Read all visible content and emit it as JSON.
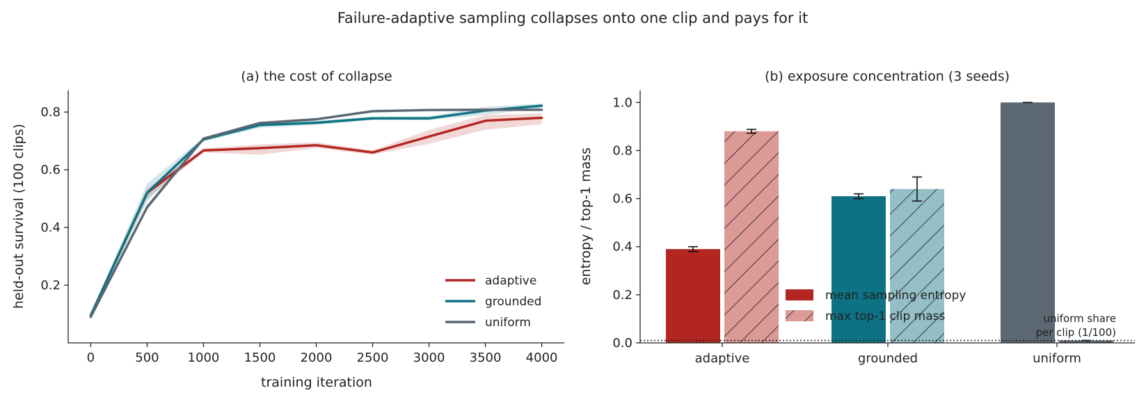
{
  "suptitle": "Failure-adaptive sampling collapses onto one clip and pays for it",
  "colors": {
    "adaptive": "#b22520",
    "adaptive_light": "#dc9a96",
    "grounded": "#0d7384",
    "grounded_light": "#94bfc7",
    "uniform": "#5b6772"
  },
  "chart_data": [
    {
      "type": "line",
      "title": "(a) the cost of collapse",
      "xlabel": "training iteration",
      "ylabel": "held-out survival (100 clips)",
      "x": [
        0,
        500,
        1000,
        1500,
        2000,
        2500,
        3000,
        3500,
        4000
      ],
      "xticks": [
        0,
        500,
        1000,
        1500,
        2000,
        2500,
        3000,
        3500,
        4000
      ],
      "yticks": [
        0.2,
        0.4,
        0.6,
        0.8
      ],
      "xlim": [
        -200,
        4200
      ],
      "ylim": [
        0.0,
        0.875
      ],
      "grid": false,
      "legend_position": "bottom-right",
      "series": [
        {
          "name": "adaptive",
          "values": [
            0.095,
            0.52,
            0.667,
            0.675,
            0.685,
            0.66,
            0.715,
            0.77,
            0.78
          ],
          "lower": [
            0.085,
            0.5,
            0.66,
            0.652,
            0.675,
            0.652,
            0.69,
            0.738,
            0.758
          ],
          "upper": [
            0.105,
            0.535,
            0.675,
            0.688,
            0.695,
            0.668,
            0.738,
            0.79,
            0.795
          ]
        },
        {
          "name": "grounded",
          "values": [
            0.095,
            0.52,
            0.705,
            0.755,
            0.763,
            0.778,
            0.778,
            0.805,
            0.822
          ],
          "lower": [
            0.088,
            0.49,
            0.698,
            0.745,
            0.755,
            0.772,
            0.772,
            0.79,
            0.815
          ],
          "upper": [
            0.102,
            0.552,
            0.712,
            0.762,
            0.77,
            0.785,
            0.786,
            0.818,
            0.83
          ]
        },
        {
          "name": "uniform",
          "values": [
            0.09,
            0.47,
            0.708,
            0.762,
            0.775,
            0.803,
            0.807,
            0.808,
            0.808
          ],
          "lower": [
            0.085,
            0.46,
            0.703,
            0.757,
            0.77,
            0.798,
            0.803,
            0.803,
            0.803
          ],
          "upper": [
            0.095,
            0.48,
            0.713,
            0.767,
            0.78,
            0.808,
            0.811,
            0.813,
            0.813
          ]
        }
      ]
    },
    {
      "type": "bar",
      "title": "(b) exposure concentration (3 seeds)",
      "ylabel": "entropy / top-1 mass",
      "categories": [
        "adaptive",
        "grounded",
        "uniform"
      ],
      "yticks": [
        0.0,
        0.2,
        0.4,
        0.6,
        0.8,
        1.0
      ],
      "ylim": [
        0.0,
        1.05
      ],
      "grid": false,
      "legend_position": "lower-center",
      "series": [
        {
          "name": "mean sampling entropy",
          "values": [
            0.39,
            0.61,
            1.0
          ],
          "err": [
            0.01,
            0.01,
            0.0
          ],
          "hatch": false
        },
        {
          "name": "max top-1 clip mass",
          "values": [
            0.88,
            0.64,
            0.01
          ],
          "err": [
            0.008,
            0.05,
            0.0
          ],
          "hatch": true
        }
      ],
      "reference_line": {
        "y": 0.01,
        "style": "dotted",
        "label_line1": "uniform share",
        "label_line2": "per clip (1/100)"
      }
    }
  ]
}
